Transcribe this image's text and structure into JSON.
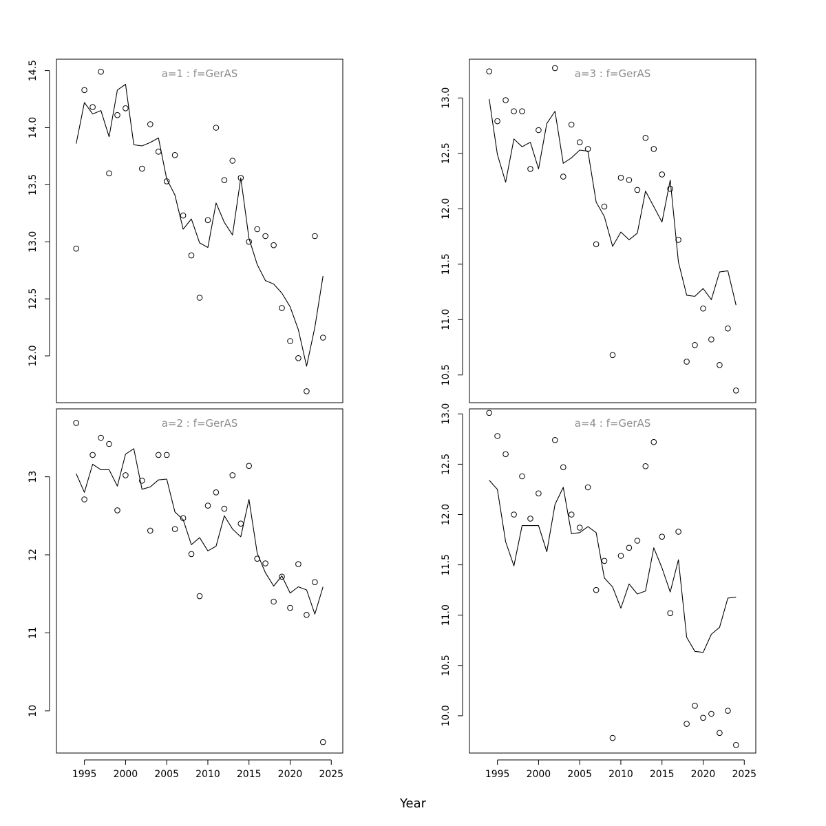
{
  "chart_data": {
    "type": "scatter",
    "xlabel": "Year",
    "xlim": [
      1991.6,
      2026.4
    ],
    "xticks": [
      1995,
      2000,
      2005,
      2010,
      2015,
      2020,
      2025
    ],
    "years": [
      1994,
      1995,
      1996,
      1997,
      1998,
      1999,
      2000,
      2001,
      2002,
      2003,
      2004,
      2005,
      2006,
      2007,
      2008,
      2009,
      2010,
      2011,
      2012,
      2013,
      2014,
      2015,
      2016,
      2017,
      2018,
      2019,
      2020,
      2021,
      2022,
      2023,
      2024
    ],
    "series_types": {
      "points": "open-circle",
      "line": "solid-line"
    },
    "panels": [
      {
        "title": "a=1  :  f=GerAS",
        "ylim": [
          11.59,
          14.6
        ],
        "yticks": [
          12.0,
          12.5,
          13.0,
          13.5,
          14.0,
          14.5
        ],
        "ytick_labels": [
          "12.0",
          "12.5",
          "13.0",
          "13.5",
          "14.0",
          "14.5"
        ],
        "points": [
          12.94,
          14.33,
          14.18,
          14.49,
          13.6,
          14.11,
          14.17,
          null,
          13.64,
          14.03,
          13.79,
          13.53,
          13.76,
          13.23,
          12.88,
          12.51,
          13.19,
          14.0,
          13.54,
          13.71,
          13.56,
          13.0,
          13.11,
          13.05,
          12.97,
          12.42,
          12.13,
          11.98,
          11.69,
          13.05,
          12.16
        ],
        "line": [
          13.86,
          14.22,
          14.12,
          14.15,
          13.92,
          14.33,
          14.38,
          13.85,
          13.84,
          13.87,
          13.91,
          13.55,
          13.41,
          13.11,
          13.2,
          12.99,
          12.95,
          13.34,
          13.17,
          13.06,
          13.56,
          13.03,
          12.8,
          12.66,
          12.63,
          12.55,
          12.43,
          12.23,
          11.91,
          12.25,
          12.7
        ]
      },
      {
        "title": "a=3  :  f=GerAS",
        "ylim": [
          10.25,
          13.35
        ],
        "yticks": [
          10.5,
          11.0,
          11.5,
          12.0,
          12.5,
          13.0
        ],
        "ytick_labels": [
          "10.5",
          "11.0",
          "11.5",
          "12.0",
          "12.5",
          "13.0"
        ],
        "points": [
          13.24,
          12.79,
          12.98,
          12.88,
          12.88,
          12.36,
          12.71,
          null,
          13.27,
          12.29,
          12.76,
          12.6,
          12.54,
          11.68,
          12.02,
          10.68,
          12.28,
          12.26,
          12.17,
          12.64,
          12.54,
          12.31,
          12.18,
          11.72,
          10.62,
          10.77,
          11.1,
          10.82,
          10.59,
          10.92,
          10.36
        ],
        "line": [
          12.99,
          12.49,
          12.24,
          12.63,
          12.56,
          12.6,
          12.36,
          12.77,
          12.88,
          12.41,
          12.46,
          12.53,
          12.52,
          12.06,
          11.93,
          11.66,
          11.79,
          11.72,
          11.78,
          12.16,
          12.02,
          11.88,
          12.26,
          11.52,
          11.22,
          11.21,
          11.28,
          11.18,
          11.43,
          11.44,
          11.13
        ]
      },
      {
        "title": "a=2  :  f=GerAS",
        "ylim": [
          9.46,
          13.87
        ],
        "yticks": [
          10,
          11,
          12,
          13
        ],
        "ytick_labels": [
          "10",
          "11",
          "12",
          "13"
        ],
        "points": [
          13.69,
          12.71,
          13.28,
          13.5,
          13.42,
          12.57,
          13.02,
          null,
          12.95,
          12.31,
          13.28,
          13.28,
          12.33,
          12.47,
          12.01,
          11.47,
          12.63,
          12.8,
          12.59,
          13.02,
          12.4,
          13.14,
          11.95,
          11.89,
          11.4,
          11.72,
          11.32,
          11.88,
          11.23,
          11.65,
          9.6
        ],
        "line": [
          13.04,
          12.8,
          13.16,
          13.09,
          13.09,
          12.88,
          13.29,
          13.36,
          12.84,
          12.87,
          12.96,
          12.97,
          12.55,
          12.45,
          12.13,
          12.22,
          12.05,
          12.11,
          12.5,
          12.33,
          12.23,
          12.71,
          12.02,
          11.77,
          11.6,
          11.73,
          11.51,
          11.59,
          11.55,
          11.24,
          11.59
        ]
      },
      {
        "title": "a=4  :  f=GerAS",
        "ylim": [
          9.63,
          13.05
        ],
        "yticks": [
          10.0,
          10.5,
          11.0,
          11.5,
          12.0,
          12.5,
          13.0
        ],
        "ytick_labels": [
          "10.0",
          "10.5",
          "11.0",
          "11.5",
          "12.0",
          "12.5",
          "13.0"
        ],
        "points": [
          13.01,
          12.78,
          12.6,
          12.0,
          12.38,
          11.96,
          12.21,
          null,
          12.74,
          12.47,
          12.0,
          11.87,
          12.27,
          11.25,
          11.54,
          9.78,
          11.59,
          11.67,
          11.74,
          12.48,
          12.72,
          11.78,
          11.02,
          11.83,
          9.92,
          10.1,
          9.98,
          10.02,
          9.83,
          10.05,
          9.71
        ],
        "line": [
          12.34,
          12.25,
          11.73,
          11.49,
          11.89,
          11.89,
          11.89,
          11.63,
          12.1,
          12.27,
          11.81,
          11.82,
          11.88,
          11.82,
          11.37,
          11.28,
          11.07,
          11.31,
          11.21,
          11.24,
          11.67,
          11.47,
          11.23,
          11.55,
          10.78,
          10.64,
          10.63,
          10.81,
          10.88,
          11.17,
          11.18
        ]
      }
    ]
  }
}
